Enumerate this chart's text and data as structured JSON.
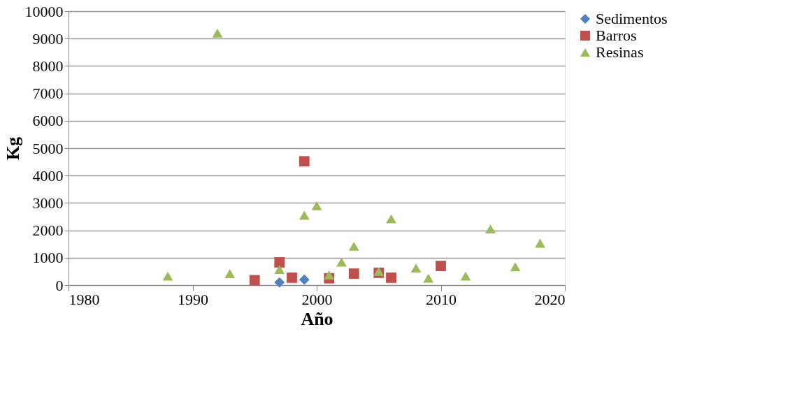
{
  "chart_data": {
    "type": "scatter",
    "xlabel": "Año",
    "ylabel": "Kg",
    "xlim": [
      1980,
      2020
    ],
    "xticks": [
      1980,
      1990,
      2000,
      2010,
      2020
    ],
    "ylim": [
      0,
      10000
    ],
    "yticks": [
      0,
      1000,
      2000,
      3000,
      4000,
      5000,
      6000,
      7000,
      8000,
      9000,
      10000
    ],
    "grid": "y",
    "legend": "right",
    "series": [
      {
        "name": "Sedimentos",
        "color": "#4f81bd",
        "marker": "diamond",
        "x": [
          1997,
          1999
        ],
        "values": [
          100,
          200
        ]
      },
      {
        "name": "Barros",
        "color": "#c0504d",
        "marker": "square",
        "x": [
          1995,
          1997,
          1998,
          1999,
          2001,
          2003,
          2005,
          2006,
          2010
        ],
        "values": [
          180,
          830,
          270,
          4520,
          250,
          420,
          450,
          270,
          700
        ]
      },
      {
        "name": "Resinas",
        "color": "#9bbb59",
        "marker": "triangle",
        "x": [
          1988,
          1992,
          1993,
          1997,
          1999,
          2000,
          2001,
          2002,
          2003,
          2005,
          2006,
          2008,
          2009,
          2012,
          2014,
          2016,
          2018
        ],
        "values": [
          330,
          9200,
          420,
          570,
          2550,
          2900,
          370,
          840,
          1420,
          500,
          2420,
          620,
          250,
          330,
          2050,
          670,
          1530
        ]
      }
    ]
  }
}
